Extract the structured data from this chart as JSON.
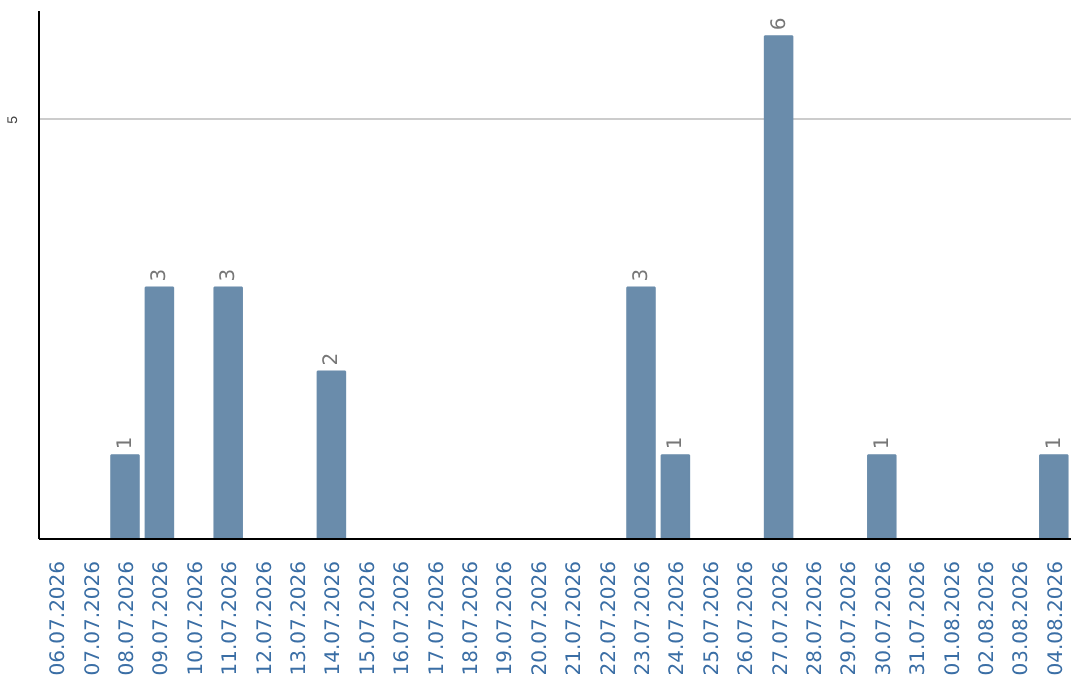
{
  "chart_data": {
    "type": "bar",
    "categories": [
      "06.07.2026",
      "07.07.2026",
      "08.07.2026",
      "09.07.2026",
      "10.07.2026",
      "11.07.2026",
      "12.07.2026",
      "13.07.2026",
      "14.07.2026",
      "15.07.2026",
      "16.07.2026",
      "17.07.2026",
      "18.07.2026",
      "19.07.2026",
      "20.07.2026",
      "21.07.2026",
      "22.07.2026",
      "23.07.2026",
      "24.07.2026",
      "25.07.2026",
      "26.07.2026",
      "27.07.2026",
      "28.07.2026",
      "29.07.2026",
      "30.07.2026",
      "31.07.2026",
      "01.08.2026",
      "02.08.2026",
      "03.08.2026",
      "04.08.2026"
    ],
    "values": [
      0,
      0,
      1,
      3,
      0,
      3,
      0,
      0,
      2,
      0,
      0,
      0,
      0,
      0,
      0,
      0,
      0,
      3,
      1,
      0,
      0,
      6,
      0,
      0,
      1,
      0,
      0,
      0,
      0,
      1
    ],
    "value_labels": [
      null,
      null,
      "1",
      "3",
      null,
      "3",
      null,
      null,
      "2",
      null,
      null,
      null,
      null,
      null,
      null,
      null,
      null,
      "3",
      "1",
      null,
      null,
      "6",
      null,
      null,
      "1",
      null,
      null,
      null,
      null,
      "1"
    ],
    "color": "#6a8cab",
    "ylim": [
      0,
      6.3
    ],
    "yticks": [
      5
    ],
    "grid": "y"
  }
}
